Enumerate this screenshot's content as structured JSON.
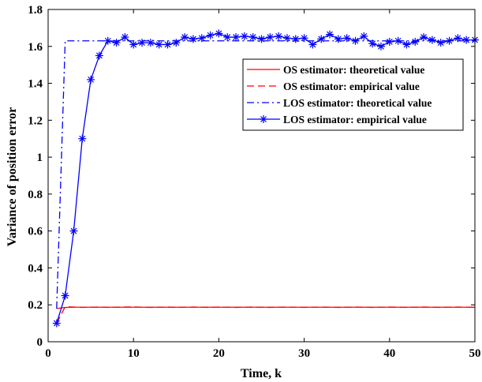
{
  "chart_data": {
    "type": "line",
    "title": "",
    "xlabel": "Time, k",
    "ylabel": "Variance of position error",
    "xlim": [
      0,
      50
    ],
    "ylim": [
      0,
      1.8
    ],
    "xticks": [
      "0",
      "10",
      "20",
      "30",
      "40",
      "50"
    ],
    "yticks": [
      "0",
      "0.2",
      "0.4",
      "0.6",
      "0.8",
      "1",
      "1.2",
      "1.4",
      "1.6",
      "1.8"
    ],
    "grid": false,
    "legend_position": "right, upper-middle",
    "x": [
      1,
      2,
      3,
      4,
      5,
      6,
      7,
      8,
      9,
      10,
      11,
      12,
      13,
      14,
      15,
      16,
      17,
      18,
      19,
      20,
      21,
      22,
      23,
      24,
      25,
      26,
      27,
      28,
      29,
      30,
      31,
      32,
      33,
      34,
      35,
      36,
      37,
      38,
      39,
      40,
      41,
      42,
      43,
      44,
      45,
      46,
      47,
      48,
      49,
      50
    ],
    "series": [
      {
        "name": "OS estimator: theoretical value",
        "color": "#ff0000",
        "line_style": "solid",
        "marker": "none",
        "values": [
          0.18,
          0.186,
          0.187,
          0.187,
          0.187,
          0.187,
          0.187,
          0.187,
          0.187,
          0.187,
          0.187,
          0.187,
          0.187,
          0.187,
          0.187,
          0.187,
          0.187,
          0.187,
          0.187,
          0.187,
          0.187,
          0.187,
          0.187,
          0.187,
          0.187,
          0.187,
          0.187,
          0.187,
          0.187,
          0.187,
          0.187,
          0.187,
          0.187,
          0.187,
          0.187,
          0.187,
          0.187,
          0.187,
          0.187,
          0.187,
          0.187,
          0.187,
          0.187,
          0.187,
          0.187,
          0.187,
          0.187,
          0.187,
          0.187,
          0.187
        ]
      },
      {
        "name": "OS estimator: empirical value",
        "color": "#ff0000",
        "line_style": "dashed",
        "marker": "none",
        "values": [
          0.1,
          0.19,
          0.188,
          0.186,
          0.187,
          0.188,
          0.186,
          0.187,
          0.188,
          0.189,
          0.187,
          0.186,
          0.187,
          0.188,
          0.186,
          0.187,
          0.188,
          0.187,
          0.186,
          0.188,
          0.187,
          0.186,
          0.187,
          0.188,
          0.187,
          0.186,
          0.187,
          0.188,
          0.187,
          0.186,
          0.187,
          0.188,
          0.187,
          0.186,
          0.187,
          0.188,
          0.187,
          0.186,
          0.187,
          0.188,
          0.187,
          0.186,
          0.187,
          0.188,
          0.187,
          0.186,
          0.187,
          0.188,
          0.187,
          0.186
        ]
      },
      {
        "name": "LOS estimator: theoretical value",
        "color": "#0000ff",
        "line_style": "dashdot",
        "marker": "none",
        "values": [
          0.18,
          1.63,
          1.63,
          1.63,
          1.63,
          1.63,
          1.63,
          1.63,
          1.63,
          1.63,
          1.63,
          1.63,
          1.63,
          1.63,
          1.63,
          1.63,
          1.63,
          1.63,
          1.63,
          1.63,
          1.63,
          1.63,
          1.63,
          1.63,
          1.63,
          1.63,
          1.63,
          1.63,
          1.63,
          1.63,
          1.63,
          1.63,
          1.63,
          1.63,
          1.63,
          1.63,
          1.63,
          1.63,
          1.63,
          1.63,
          1.63,
          1.63,
          1.63,
          1.63,
          1.63,
          1.63,
          1.63,
          1.63,
          1.63,
          1.63
        ]
      },
      {
        "name": "LOS estimator: empirical value",
        "color": "#0000ff",
        "line_style": "solid",
        "marker": "asterisk",
        "values": [
          0.1,
          0.25,
          0.6,
          1.1,
          1.42,
          1.55,
          1.63,
          1.62,
          1.65,
          1.61,
          1.62,
          1.62,
          1.61,
          1.61,
          1.62,
          1.65,
          1.64,
          1.645,
          1.66,
          1.67,
          1.65,
          1.65,
          1.655,
          1.65,
          1.64,
          1.65,
          1.655,
          1.645,
          1.64,
          1.645,
          1.61,
          1.64,
          1.665,
          1.64,
          1.645,
          1.63,
          1.655,
          1.615,
          1.6,
          1.625,
          1.63,
          1.61,
          1.625,
          1.65,
          1.635,
          1.62,
          1.63,
          1.645,
          1.635,
          1.635
        ]
      }
    ]
  }
}
